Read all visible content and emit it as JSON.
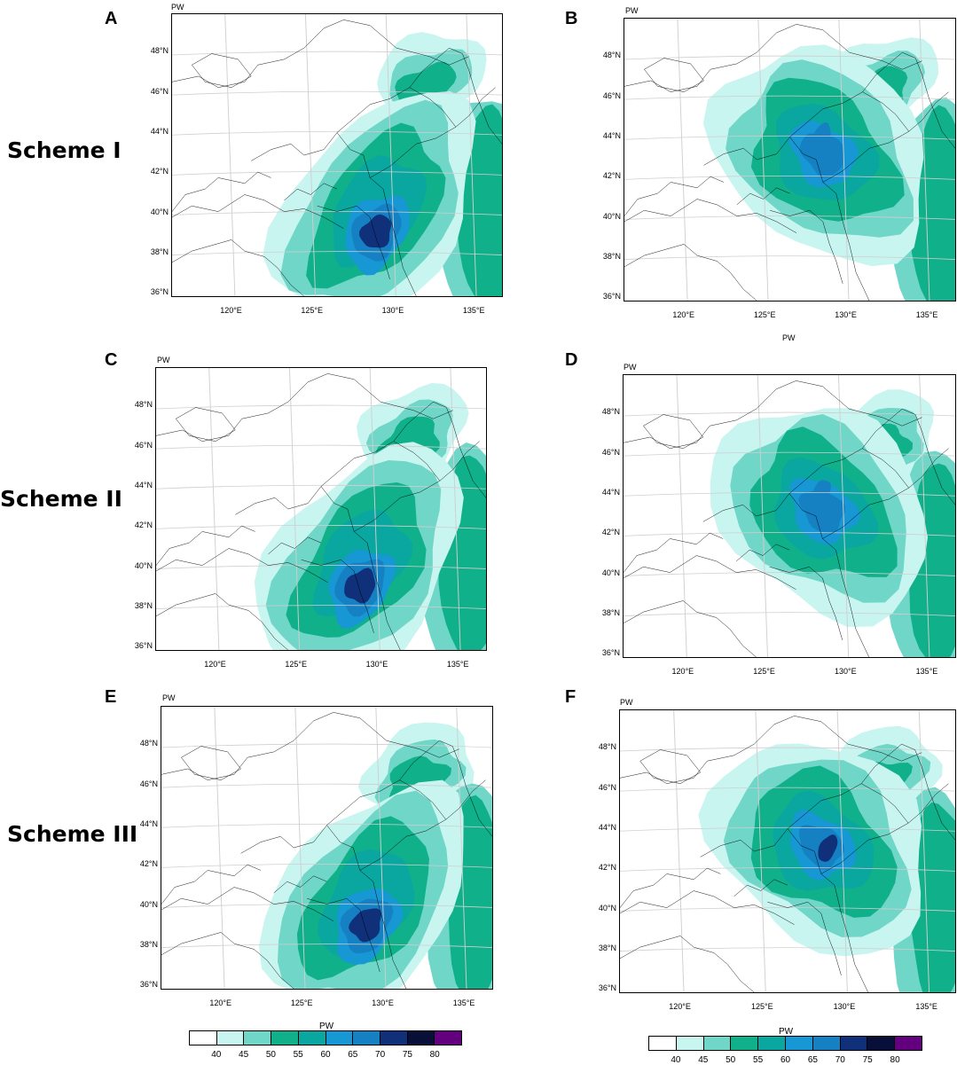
{
  "variable_label": "PW",
  "schemes": [
    "Scheme I",
    "Scheme II",
    "Scheme III"
  ],
  "lat_labels": [
    "48°N",
    "46°N",
    "44°N",
    "42°N",
    "40°N",
    "38°N",
    "36°N"
  ],
  "lon_labels": [
    "120°E",
    "125°E",
    "130°E",
    "135°E"
  ],
  "colorbar": {
    "title": "PW",
    "ticks": [
      "40",
      "45",
      "50",
      "55",
      "60",
      "65",
      "70",
      "75",
      "80"
    ],
    "colors": [
      "#ffffff",
      "#c8f5f0",
      "#6fd6c8",
      "#10b08a",
      "#0aa6a0",
      "#1797d3",
      "#1581c3",
      "#10307a",
      "#08103a",
      "#62007e"
    ]
  },
  "panels": [
    {
      "letter": "A",
      "scheme": "Scheme I",
      "peak_value": 75,
      "peak_lat": 39,
      "peak_lon": 129
    },
    {
      "letter": "B",
      "scheme": "Scheme I",
      "peak_value": 65,
      "peak_lat": 44,
      "peak_lon": 128.5
    },
    {
      "letter": "C",
      "scheme": "Scheme II",
      "peak_value": 75,
      "peak_lat": 39,
      "peak_lon": 129
    },
    {
      "letter": "D",
      "scheme": "Scheme II",
      "peak_value": 65,
      "peak_lat": 44,
      "peak_lon": 128.5
    },
    {
      "letter": "E",
      "scheme": "Scheme III",
      "peak_value": 75,
      "peak_lat": 39,
      "peak_lon": 129
    },
    {
      "letter": "F",
      "scheme": "Scheme III",
      "peak_value": 75,
      "peak_lat": 43,
      "peak_lon": 129
    }
  ]
}
